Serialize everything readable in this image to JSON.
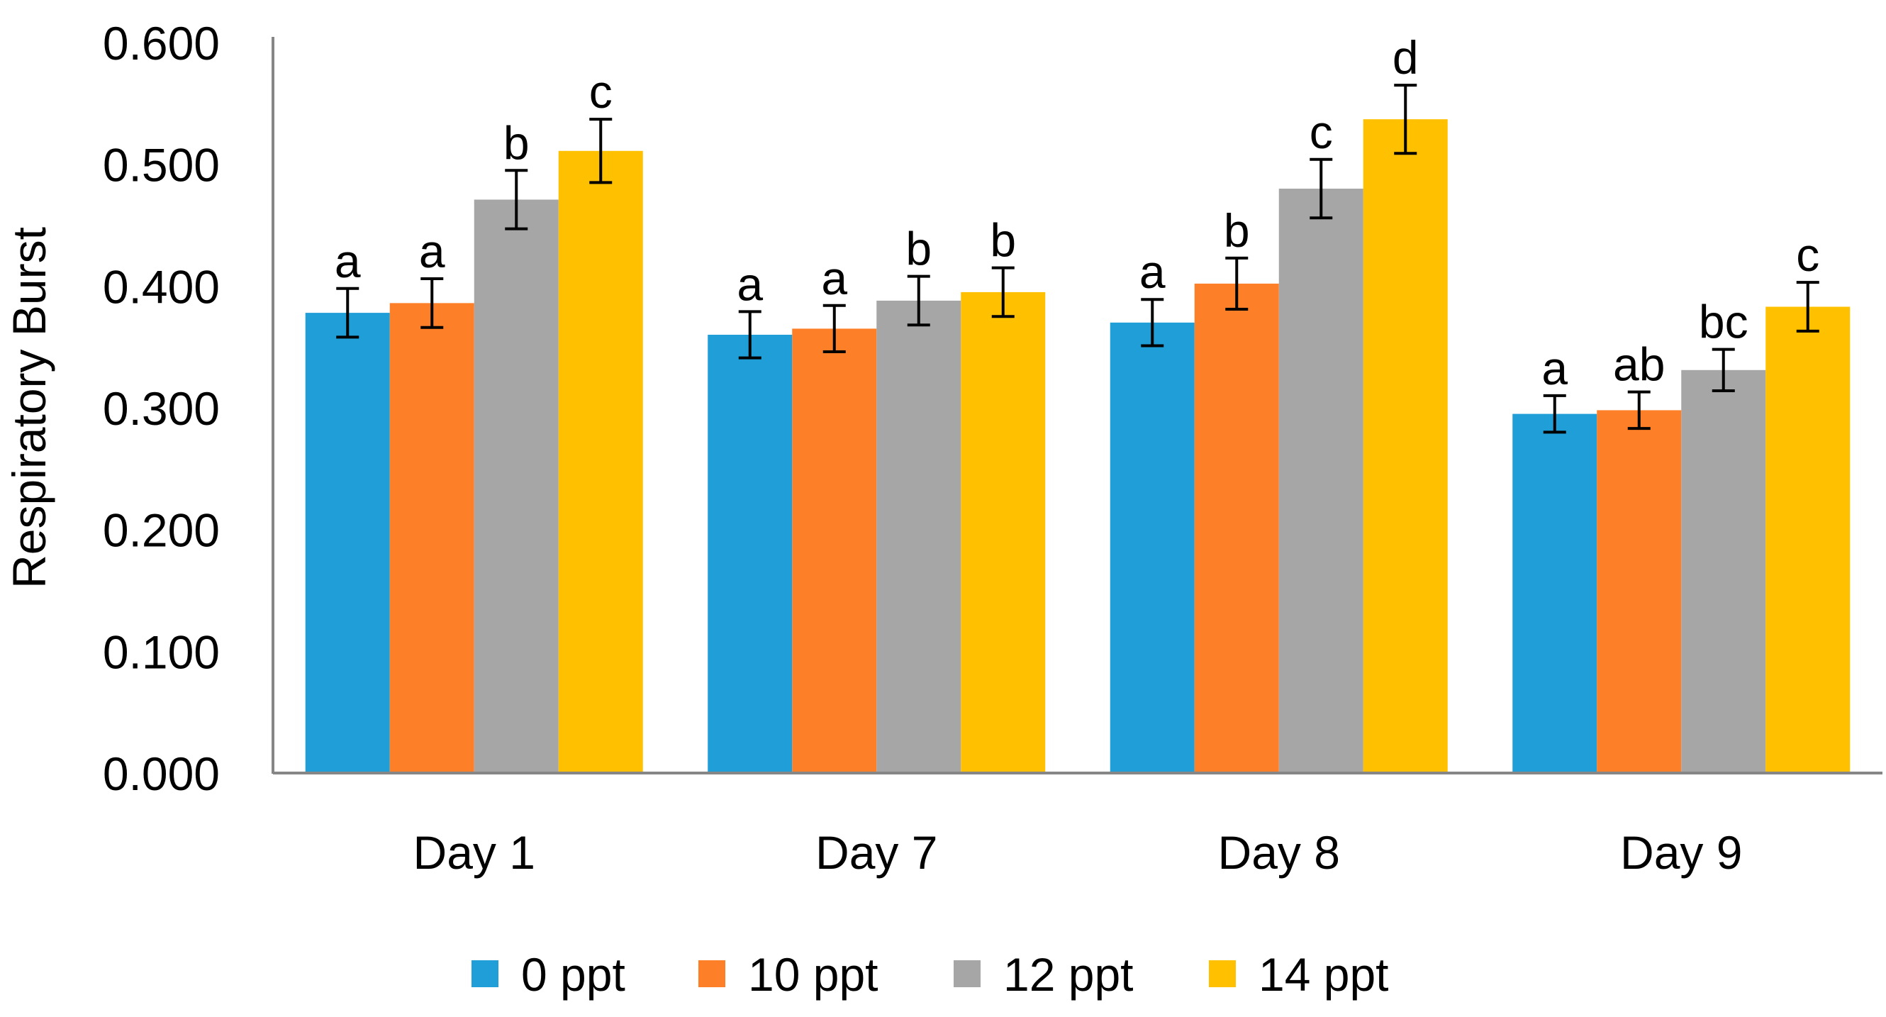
{
  "chart_data": {
    "type": "bar",
    "title": "",
    "xlabel": "",
    "ylabel": "Respiratory Burst",
    "ylim": [
      0,
      0.6
    ],
    "yticks": [
      "0.000",
      "0.100",
      "0.200",
      "0.300",
      "0.400",
      "0.500",
      "0.600"
    ],
    "ytick_values": [
      0,
      0.1,
      0.2,
      0.3,
      0.4,
      0.5,
      0.6
    ],
    "categories": [
      "Day 1",
      "Day 7",
      "Day 8",
      "Day 9"
    ],
    "grid": false,
    "legend_position": "bottom",
    "series": [
      {
        "name": "0 ppt",
        "color": "#1F9ED8",
        "values": [
          0.378,
          0.36,
          0.37,
          0.295
        ],
        "errors": [
          0.02,
          0.019,
          0.019,
          0.015
        ],
        "labels": [
          "a",
          "a",
          "a",
          "a"
        ]
      },
      {
        "name": "10 ppt",
        "color": "#FD7F28",
        "values": [
          0.386,
          0.365,
          0.402,
          0.298
        ],
        "errors": [
          0.02,
          0.019,
          0.021,
          0.015
        ],
        "labels": [
          "a",
          "a",
          "b",
          "ab"
        ]
      },
      {
        "name": "12 ppt",
        "color": "#A6A6A6",
        "values": [
          0.471,
          0.388,
          0.48,
          0.331
        ],
        "errors": [
          0.024,
          0.02,
          0.024,
          0.017
        ],
        "labels": [
          "b",
          "b",
          "c",
          "bc"
        ]
      },
      {
        "name": "14 ppt",
        "color": "#FFC000",
        "values": [
          0.511,
          0.395,
          0.537,
          0.383
        ],
        "errors": [
          0.026,
          0.02,
          0.028,
          0.02
        ],
        "labels": [
          "c",
          "b",
          "d",
          "c"
        ]
      }
    ]
  }
}
